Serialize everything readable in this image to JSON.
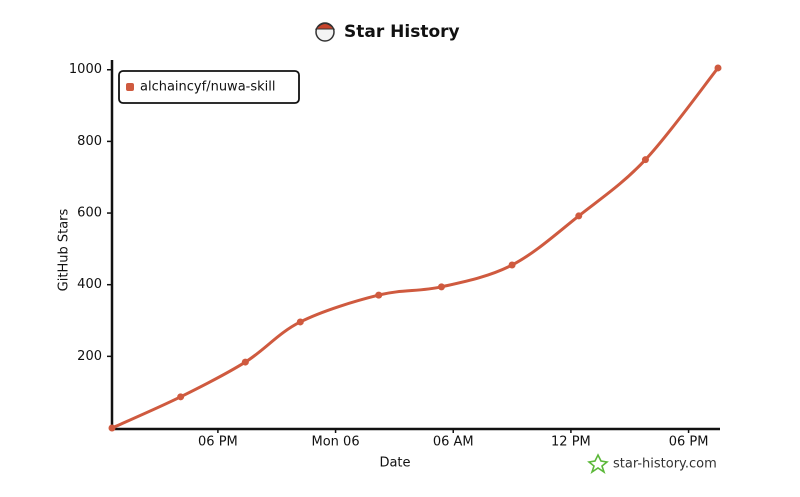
{
  "chart_data": {
    "type": "line",
    "title": "Star History",
    "x_label": "Date",
    "y_label": "GitHub Stars",
    "x": [
      0.6,
      4.1,
      7.4,
      10.2,
      14.2,
      17.4,
      21.0,
      24.4,
      27.8,
      31.5
    ],
    "series": [
      {
        "name": "alchaincyf/nuwa-skill",
        "color": "#cf5a3f",
        "values": [
          0,
          87,
          184,
          296,
          371,
          394,
          455,
          592,
          749,
          1005
        ]
      }
    ],
    "xlim": [
      0.6,
      31.5
    ],
    "xticks": [
      {
        "value": 6,
        "label": "06 PM"
      },
      {
        "value": 12,
        "label": "Mon 06"
      },
      {
        "value": 18,
        "label": "06 AM"
      },
      {
        "value": 24,
        "label": "12 PM"
      },
      {
        "value": 30,
        "label": "06 PM"
      }
    ],
    "ylim": [
      0,
      1030
    ],
    "yticks": [
      200,
      400,
      600,
      800,
      1000
    ],
    "grid": false,
    "legend": "upper left",
    "watermark": "star-history.com"
  }
}
